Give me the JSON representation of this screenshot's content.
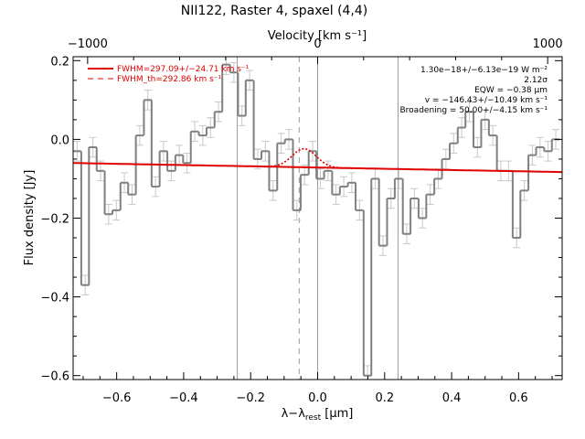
{
  "chart_data": {
    "type": "line",
    "title": "NII122, Raster 4, spaxel (4,4)",
    "top_axis": {
      "label": "Velocity [km s⁻¹]",
      "ticks": [
        -1000,
        0,
        1000
      ],
      "tick_labels": [
        "−1000",
        "0",
        "1000"
      ],
      "xlim": [
        -1063,
        1063
      ]
    },
    "xlabel": "λ−λ_rest [μm]",
    "xlabel_parts": {
      "pre": "λ−λ",
      "sub": "rest",
      "post": " [μm]"
    },
    "ylabel": "Flux density [Jy]",
    "xlim": [
      -0.73,
      0.73
    ],
    "ylim": [
      -0.61,
      0.21
    ],
    "x_ticks": [
      -0.6,
      -0.4,
      -0.2,
      0.0,
      0.2,
      0.4,
      0.6
    ],
    "x_tick_labels": [
      "−0.6",
      "−0.4",
      "−0.2",
      "0.0",
      "0.2",
      "0.4",
      "0.6"
    ],
    "y_ticks": [
      -0.6,
      -0.4,
      -0.2,
      0.0,
      0.2
    ],
    "y_tick_labels": [
      "−0.6",
      "−0.4",
      "−0.2",
      "0.0",
      "0.2"
    ],
    "vertical_lines": [
      {
        "x": -0.24,
        "style": "solid"
      },
      {
        "x": -0.055,
        "style": "dashed"
      },
      {
        "x": 0.0,
        "style": "solid"
      },
      {
        "x": 0.24,
        "style": "solid"
      }
    ],
    "spectrum": {
      "name": "spectrum",
      "style": "histogram",
      "color": "#808080",
      "bin_width": 0.0234,
      "x": [
        -0.718,
        -0.694,
        -0.671,
        -0.648,
        -0.624,
        -0.601,
        -0.577,
        -0.554,
        -0.531,
        -0.507,
        -0.484,
        -0.46,
        -0.437,
        -0.413,
        -0.39,
        -0.367,
        -0.343,
        -0.32,
        -0.296,
        -0.273,
        -0.25,
        -0.226,
        -0.203,
        -0.179,
        -0.156,
        -0.133,
        -0.109,
        -0.086,
        -0.062,
        -0.039,
        -0.015,
        0.008,
        0.031,
        0.055,
        0.078,
        0.102,
        0.125,
        0.149,
        0.172,
        0.195,
        0.219,
        0.242,
        0.266,
        0.289,
        0.313,
        0.336,
        0.36,
        0.383,
        0.406,
        0.43,
        0.453,
        0.477,
        0.5,
        0.523,
        0.547,
        0.57,
        0.594,
        0.617,
        0.641,
        0.664,
        0.688,
        0.711
      ],
      "y": [
        -0.03,
        -0.37,
        -0.02,
        -0.08,
        -0.19,
        -0.18,
        -0.11,
        -0.14,
        0.01,
        0.1,
        -0.12,
        -0.03,
        -0.08,
        -0.04,
        -0.06,
        0.02,
        0.01,
        0.03,
        0.07,
        0.19,
        0.17,
        0.06,
        0.15,
        -0.05,
        -0.03,
        -0.13,
        -0.01,
        0.0,
        -0.18,
        -0.09,
        -0.03,
        -0.1,
        -0.08,
        -0.14,
        -0.12,
        -0.11,
        -0.18,
        -0.6,
        -0.1,
        -0.27,
        -0.15,
        -0.1,
        -0.24,
        -0.15,
        -0.2,
        -0.14,
        -0.1,
        -0.05,
        -0.01,
        0.03,
        0.07,
        -0.02,
        0.05,
        0.01,
        -0.08,
        -0.08,
        -0.25,
        -0.13,
        -0.04,
        -0.02,
        -0.03,
        0.0
      ],
      "error": 0.025
    },
    "fit": {
      "name": "FWHM=297.09+/−24.71 km s⁻¹",
      "color": "#e00000",
      "style": "solid",
      "baseline_start": -0.06,
      "baseline_end": -0.083,
      "peak_center": -0.04,
      "peak_height": 0.047,
      "peak_sigma": 0.036
    },
    "fit_theoretical": {
      "name": "FWHM_th=292.86 km s⁻¹",
      "color": "#e00000",
      "style": "dashed"
    },
    "legend": {
      "placement": "top-left",
      "entries": [
        "FWHM=297.09+/−24.71 km s⁻¹",
        "FWHM_th=292.86 km s⁻¹"
      ]
    },
    "annotations": [
      "1.30e−18+/−6.13e−19 W m⁻²",
      "2.12σ",
      "EQW = −0.38 μm",
      "v = −146.43+/−10.49 km s⁻¹",
      "Broadening = 50.00+/−4.15 km s⁻¹"
    ]
  }
}
